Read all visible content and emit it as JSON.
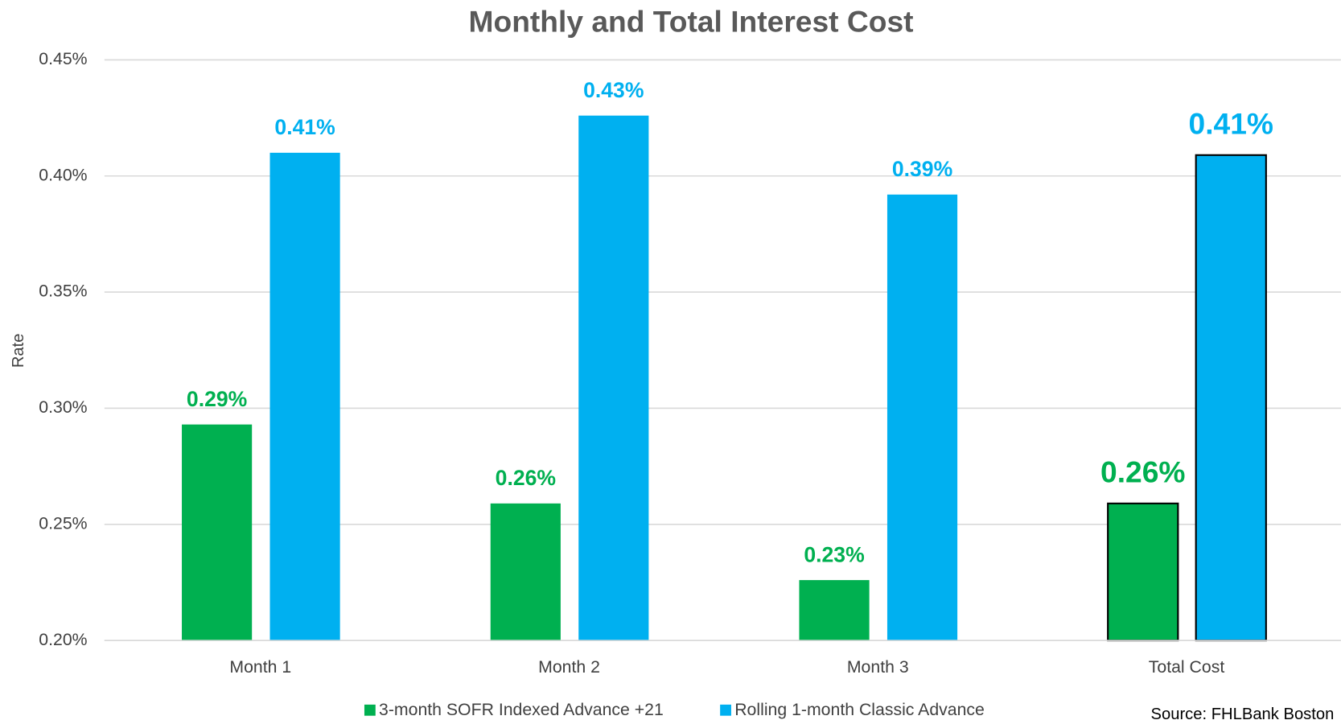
{
  "chart_data": {
    "type": "bar",
    "title": "Monthly and Total Interest Cost",
    "y_label": "Rate",
    "categories": [
      "Month 1",
      "Month 2",
      "Month 3",
      "Total Cost"
    ],
    "series": [
      {
        "name": "3-month SOFR Indexed Advance +21",
        "color": "#00b050",
        "values": [
          0.293,
          0.259,
          0.226,
          0.259
        ],
        "value_labels": [
          "0.29%",
          "0.26%",
          "0.23%",
          "0.26%"
        ]
      },
      {
        "name": "Rolling 1-month Classic Advance",
        "color": "#00b0f0",
        "values": [
          0.41,
          0.426,
          0.392,
          0.409
        ],
        "value_labels": [
          "0.41%",
          "0.43%",
          "0.39%",
          "0.41%"
        ]
      }
    ],
    "ylim": [
      0.2,
      0.45
    ],
    "yticks": [
      {
        "value": 0.2,
        "label": "0.20%"
      },
      {
        "value": 0.25,
        "label": "0.25%"
      },
      {
        "value": 0.3,
        "label": "0.30%"
      },
      {
        "value": 0.35,
        "label": "0.35%"
      },
      {
        "value": 0.4,
        "label": "0.40%"
      },
      {
        "value": 0.45,
        "label": "0.45%"
      }
    ],
    "grid": true,
    "legend": "bottom",
    "highlight": 3,
    "source": "Source: FHLBank Boston"
  }
}
